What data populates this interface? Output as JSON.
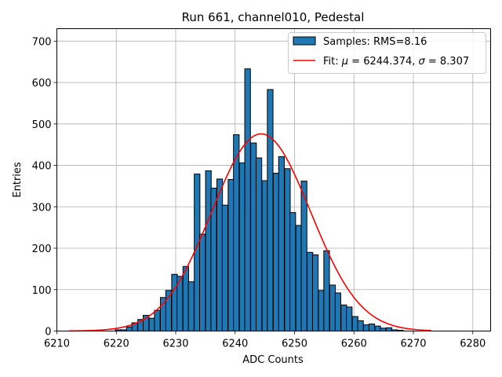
{
  "chart_data": {
    "type": "bar",
    "title": "Run 661, channel010, Pedestal",
    "xlabel": "ADC Counts",
    "ylabel": "Entries",
    "xlim": [
      6210,
      6283
    ],
    "ylim": [
      0,
      730
    ],
    "xticks": [
      6210,
      6220,
      6230,
      6240,
      6250,
      6260,
      6270,
      6280
    ],
    "yticks": [
      0,
      100,
      200,
      300,
      400,
      500,
      600,
      700
    ],
    "grid": true,
    "legend_position": "top-right",
    "colors": {
      "bar": "#1f77b4",
      "bar_edge": "#000000",
      "fit": "#ff0000"
    },
    "histogram": {
      "name": "Samples: RMS=8.16",
      "bin_width": 0.95,
      "bins": [
        {
          "x": 6220.3,
          "y": 3
        },
        {
          "x": 6221.2,
          "y": 3
        },
        {
          "x": 6222.2,
          "y": 10
        },
        {
          "x": 6223.1,
          "y": 20
        },
        {
          "x": 6224.1,
          "y": 28
        },
        {
          "x": 6225.0,
          "y": 38
        },
        {
          "x": 6226.0,
          "y": 31
        },
        {
          "x": 6226.9,
          "y": 50
        },
        {
          "x": 6227.9,
          "y": 81
        },
        {
          "x": 6228.8,
          "y": 98
        },
        {
          "x": 6229.8,
          "y": 137
        },
        {
          "x": 6230.7,
          "y": 132
        },
        {
          "x": 6231.7,
          "y": 156
        },
        {
          "x": 6232.6,
          "y": 119
        },
        {
          "x": 6233.6,
          "y": 379
        },
        {
          "x": 6234.5,
          "y": 234
        },
        {
          "x": 6235.5,
          "y": 387
        },
        {
          "x": 6236.4,
          "y": 345
        },
        {
          "x": 6237.4,
          "y": 367
        },
        {
          "x": 6238.3,
          "y": 304
        },
        {
          "x": 6239.3,
          "y": 366
        },
        {
          "x": 6240.2,
          "y": 474
        },
        {
          "x": 6241.2,
          "y": 406
        },
        {
          "x": 6242.1,
          "y": 633
        },
        {
          "x": 6243.1,
          "y": 454
        },
        {
          "x": 6244.0,
          "y": 418
        },
        {
          "x": 6245.0,
          "y": 363
        },
        {
          "x": 6245.9,
          "y": 583
        },
        {
          "x": 6246.9,
          "y": 381
        },
        {
          "x": 6247.8,
          "y": 421
        },
        {
          "x": 6248.8,
          "y": 392
        },
        {
          "x": 6249.7,
          "y": 286
        },
        {
          "x": 6250.7,
          "y": 255
        },
        {
          "x": 6251.6,
          "y": 362
        },
        {
          "x": 6252.6,
          "y": 190
        },
        {
          "x": 6253.5,
          "y": 184
        },
        {
          "x": 6254.5,
          "y": 98
        },
        {
          "x": 6255.4,
          "y": 194
        },
        {
          "x": 6256.4,
          "y": 111
        },
        {
          "x": 6257.3,
          "y": 92
        },
        {
          "x": 6258.3,
          "y": 63
        },
        {
          "x": 6259.2,
          "y": 58
        },
        {
          "x": 6260.2,
          "y": 35
        },
        {
          "x": 6261.1,
          "y": 25
        },
        {
          "x": 6262.1,
          "y": 15
        },
        {
          "x": 6263.0,
          "y": 17
        },
        {
          "x": 6264.0,
          "y": 12
        },
        {
          "x": 6264.9,
          "y": 7
        },
        {
          "x": 6265.9,
          "y": 8
        },
        {
          "x": 6266.8,
          "y": 3
        },
        {
          "x": 6267.8,
          "y": 2
        }
      ]
    },
    "fit": {
      "name": "Fit: μ = 6244.374, σ = 8.307",
      "name_prefix": "Fit: ",
      "mu_symbol": "μ",
      "mu_text": " = 6244.374, ",
      "sigma_symbol": "σ",
      "sigma_text": " = 8.307",
      "mu": 6244.374,
      "sigma": 8.307,
      "amplitude": 476,
      "x_range": [
        6212,
        6273
      ]
    }
  }
}
